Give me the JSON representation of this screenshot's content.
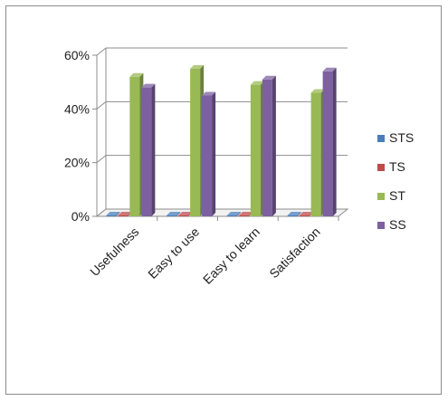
{
  "chart_data": {
    "type": "bar",
    "style": "3d-clustered-column",
    "categories": [
      "Usefulness",
      "Easy to use",
      "Easy to learn",
      "Satisfaction"
    ],
    "series": [
      {
        "name": "STS",
        "color": "#4a7ebb",
        "values": [
          0,
          0,
          0,
          0
        ]
      },
      {
        "name": "TS",
        "color": "#be4b48",
        "values": [
          0,
          0,
          0,
          0
        ]
      },
      {
        "name": "ST",
        "color": "#98b954",
        "values": [
          52,
          55,
          49,
          46
        ]
      },
      {
        "name": "SS",
        "color": "#7d60a0",
        "values": [
          48,
          45,
          51,
          54
        ]
      }
    ],
    "ylim": [
      0,
      60
    ],
    "yticks": [
      "0%",
      "20%",
      "40%",
      "60%"
    ],
    "ytick_values": [
      0,
      20,
      40,
      60
    ],
    "grid": true,
    "legend": "right"
  }
}
